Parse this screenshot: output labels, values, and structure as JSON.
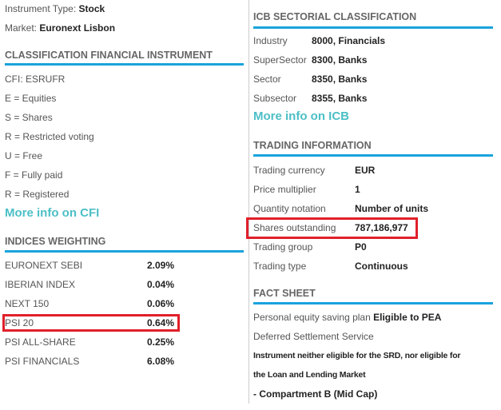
{
  "left": {
    "instrument_type_label": "Instrument Type:",
    "instrument_type": "Stock",
    "market_label": "Market:",
    "market": "Euronext Lisbon",
    "cfi_heading": "CLASSIFICATION FINANCIAL INSTRUMENT",
    "cfi_lines": [
      "CFI: ESRUFR",
      "E = Equities",
      "S = Shares",
      "R = Restricted voting",
      "U = Free",
      "F = Fully paid",
      "R = Registered"
    ],
    "cfi_link": "More info on CFI",
    "indices_heading": "INDICES WEIGHTING",
    "indices": [
      {
        "name": "EURONEXT SEBI",
        "value": "2.09%"
      },
      {
        "name": "IBERIAN INDEX",
        "value": "0.04%"
      },
      {
        "name": "NEXT 150",
        "value": "0.06%"
      },
      {
        "name": "PSI 20",
        "value": "0.64%",
        "highlighted": true
      },
      {
        "name": "PSI ALL-SHARE",
        "value": "0.25%"
      },
      {
        "name": "PSI FINANCIALS",
        "value": "6.08%"
      }
    ]
  },
  "right": {
    "icb_heading": "ICB SECTORIAL CLASSIFICATION",
    "icb": [
      {
        "label": "Industry",
        "value": "8000, Financials"
      },
      {
        "label": "SuperSector",
        "value": "8300, Banks"
      },
      {
        "label": "Sector",
        "value": "8350, Banks"
      },
      {
        "label": "Subsector",
        "value": "8355, Banks"
      }
    ],
    "icb_link": "More info on ICB",
    "trading_heading": "TRADING INFORMATION",
    "trading": [
      {
        "label": "Trading currency",
        "value": "EUR"
      },
      {
        "label": "Price multiplier",
        "value": "1"
      },
      {
        "label": "Quantity notation",
        "value": "Number of units"
      },
      {
        "label": "Shares outstanding",
        "value": "787,186,977",
        "highlighted": true
      },
      {
        "label": "Trading group",
        "value": "P0"
      },
      {
        "label": "Trading type",
        "value": "Continuous"
      }
    ],
    "fact_heading": "FACT SHEET",
    "pea_label": "Personal equity saving plan",
    "pea_value": "Eligible to PEA",
    "dss": "Deferred Settlement Service",
    "srd_line1": "Instrument neither eligible for the SRD, nor eligible for",
    "srd_line2": "the Loan and Lending Market",
    "compartment": "- Compartment B (Mid Cap)"
  },
  "colors": {
    "accent": "#1aa3dc",
    "link": "#4cbfc6",
    "highlight": "#e0202a"
  }
}
